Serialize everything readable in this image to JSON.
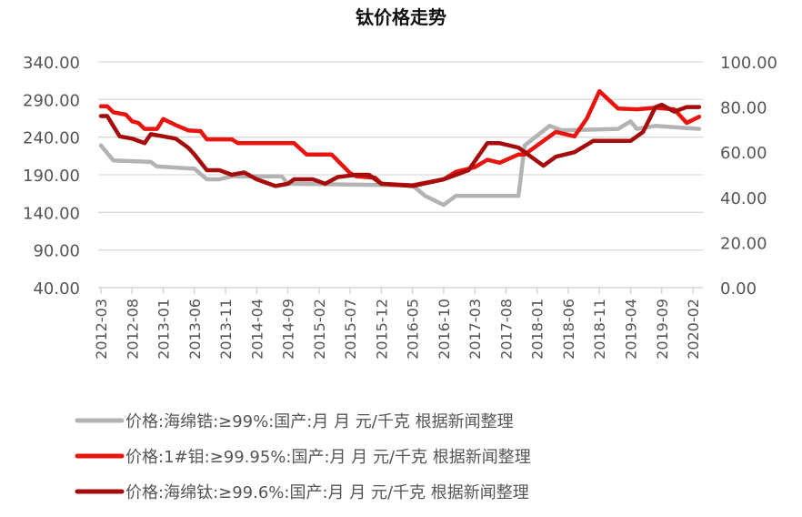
{
  "chart_data": {
    "type": "line",
    "title": "钛价格走势",
    "y_left": {
      "ylim": [
        40,
        340
      ],
      "ticks": [
        "340.00",
        "290.00",
        "240.00",
        "190.00",
        "140.00",
        "90.00",
        "40.00"
      ]
    },
    "y_right": {
      "ylim": [
        0,
        100
      ],
      "ticks": [
        "100.00",
        "80.00",
        "60.00",
        "40.00",
        "20.00",
        "0.00"
      ]
    },
    "x_ticks": [
      "2012-03",
      "2012-08",
      "2013-01",
      "2013-06",
      "2013-11",
      "2014-04",
      "2014-09",
      "2015-02",
      "2015-07",
      "2015-12",
      "2016-05",
      "2016-10",
      "2017-03",
      "2017-08",
      "2018-01",
      "2018-06",
      "2018-11",
      "2019-04",
      "2019-09",
      "2020-02"
    ],
    "grid": true,
    "legend_position": "bottom",
    "series": [
      {
        "name": "价格:海绵锆:≥99%:国产:月 月 元/千克 根据新闻整理",
        "axis": "left",
        "color": "#b3b3b3",
        "x": [
          "2012-03",
          "2012-05",
          "2012-11",
          "2012-12",
          "2013-06",
          "2013-08",
          "2013-10",
          "2013-12",
          "2014-08",
          "2014-09",
          "2016-05",
          "2016-07",
          "2016-10",
          "2016-12",
          "2017-10",
          "2017-11",
          "2018-03",
          "2018-05",
          "2019-02",
          "2019-04",
          "2019-05",
          "2019-08",
          "2020-03"
        ],
        "y": [
          229,
          209,
          207,
          201,
          198,
          184,
          184,
          188,
          188,
          178,
          176,
          162,
          150,
          162,
          162,
          229,
          255,
          249,
          251,
          261,
          251,
          255,
          251
        ]
      },
      {
        "name": "价格:1#钼:≥99.95%:国产:月 月 元/千克 根据新闻整理",
        "axis": "left",
        "color": "#e8150f",
        "x": [
          "2012-03",
          "2012-04",
          "2012-05",
          "2012-07",
          "2012-08",
          "2012-09",
          "2012-10",
          "2012-12",
          "2013-01",
          "2013-03",
          "2013-05",
          "2013-07",
          "2013-08",
          "2013-12",
          "2014-01",
          "2014-10",
          "2014-12",
          "2015-04",
          "2015-07",
          "2015-08",
          "2015-11",
          "2015-12",
          "2016-05",
          "2016-10",
          "2016-12",
          "2017-03",
          "2017-05",
          "2017-07",
          "2017-10",
          "2017-11",
          "2018-01",
          "2018-04",
          "2018-07",
          "2018-09",
          "2018-11",
          "2019-02",
          "2019-05",
          "2019-08",
          "2019-11",
          "2020-01",
          "2020-03"
        ],
        "y": [
          281,
          281,
          273,
          270,
          261,
          259,
          251,
          251,
          264,
          256,
          249,
          248,
          237,
          237,
          232,
          232,
          217,
          217,
          192,
          188,
          186,
          178,
          176,
          184,
          194,
          200,
          210,
          206,
          217,
          217,
          229,
          247,
          241,
          265,
          301,
          278,
          277,
          279,
          277,
          259,
          267
        ]
      },
      {
        "name": "价格:海绵钛:≥99.6%:国产:月 月 元/千克 根据新闻整理",
        "axis": "right",
        "color": "#a50d0d",
        "x": [
          "2012-03",
          "2012-04",
          "2012-06",
          "2012-08",
          "2012-10",
          "2012-11",
          "2013-01",
          "2013-03",
          "2013-05",
          "2013-06",
          "2013-08",
          "2013-10",
          "2013-12",
          "2014-02",
          "2014-04",
          "2014-07",
          "2014-09",
          "2014-10",
          "2015-01",
          "2015-03",
          "2015-05",
          "2015-08",
          "2015-10",
          "2015-12",
          "2016-05",
          "2016-10",
          "2017-02",
          "2017-05",
          "2017-07",
          "2017-10",
          "2018-02",
          "2018-04",
          "2018-07",
          "2018-10",
          "2019-04",
          "2019-06",
          "2019-08",
          "2019-09",
          "2019-11",
          "2020-01",
          "2020-03"
        ],
        "y": [
          76,
          76,
          67,
          66,
          64,
          68,
          67,
          66,
          62,
          59,
          52,
          52,
          50,
          51,
          48,
          45,
          46,
          48,
          48,
          46,
          49,
          50,
          50,
          46,
          45,
          48,
          52,
          64,
          64,
          62,
          54,
          58,
          60,
          65,
          65,
          69,
          80,
          81,
          78,
          80,
          80
        ]
      }
    ]
  }
}
